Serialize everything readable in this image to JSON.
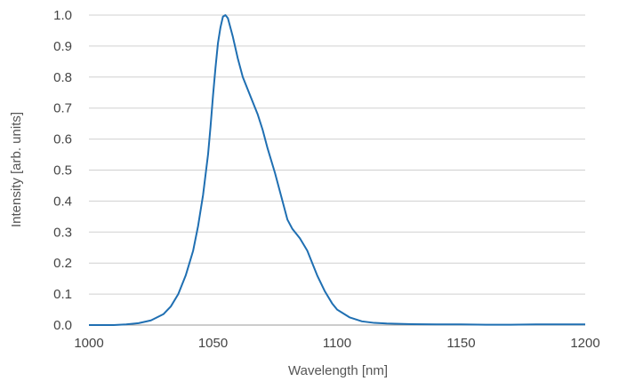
{
  "chart_data": {
    "type": "line",
    "xlabel": "Wavelength [nm]",
    "ylabel": "Intensity [arb. units]",
    "xlim": [
      1000,
      1200
    ],
    "ylim": [
      0.0,
      1.0
    ],
    "x_ticks": [
      1000,
      1050,
      1100,
      1150,
      1200
    ],
    "x_tick_labels": [
      "1000",
      "1050",
      "1100",
      "1150",
      "1200"
    ],
    "y_ticks": [
      0.0,
      0.1,
      0.2,
      0.3,
      0.4,
      0.5,
      0.6,
      0.7,
      0.8,
      0.9,
      1.0
    ],
    "y_tick_labels": [
      "0.0",
      "0.1",
      "0.2",
      "0.3",
      "0.4",
      "0.5",
      "0.6",
      "0.7",
      "0.8",
      "0.9",
      "1.0"
    ],
    "grid": {
      "horizontal": true,
      "vertical": false
    },
    "legend": "none",
    "series": [
      {
        "color": "#1f6fb2",
        "x": [
          1000,
          1010,
          1015,
          1020,
          1025,
          1030,
          1033,
          1036,
          1039,
          1042,
          1044,
          1046,
          1048,
          1049,
          1050,
          1051,
          1052,
          1053,
          1054,
          1055,
          1056,
          1058,
          1060,
          1062,
          1065,
          1068,
          1070,
          1072,
          1075,
          1078,
          1080,
          1082,
          1085,
          1088,
          1090,
          1092,
          1095,
          1098,
          1100,
          1105,
          1110,
          1115,
          1120,
          1130,
          1140,
          1150,
          1160,
          1170,
          1180,
          1190,
          1200
        ],
        "y": [
          0.0,
          0.0,
          0.002,
          0.006,
          0.015,
          0.035,
          0.06,
          0.1,
          0.16,
          0.24,
          0.32,
          0.42,
          0.55,
          0.64,
          0.74,
          0.83,
          0.91,
          0.96,
          0.995,
          1.0,
          0.99,
          0.93,
          0.86,
          0.8,
          0.74,
          0.68,
          0.63,
          0.57,
          0.49,
          0.4,
          0.34,
          0.31,
          0.28,
          0.24,
          0.2,
          0.16,
          0.11,
          0.07,
          0.05,
          0.025,
          0.012,
          0.007,
          0.005,
          0.003,
          0.002,
          0.002,
          0.001,
          0.001,
          0.002,
          0.002,
          0.002
        ]
      }
    ]
  }
}
